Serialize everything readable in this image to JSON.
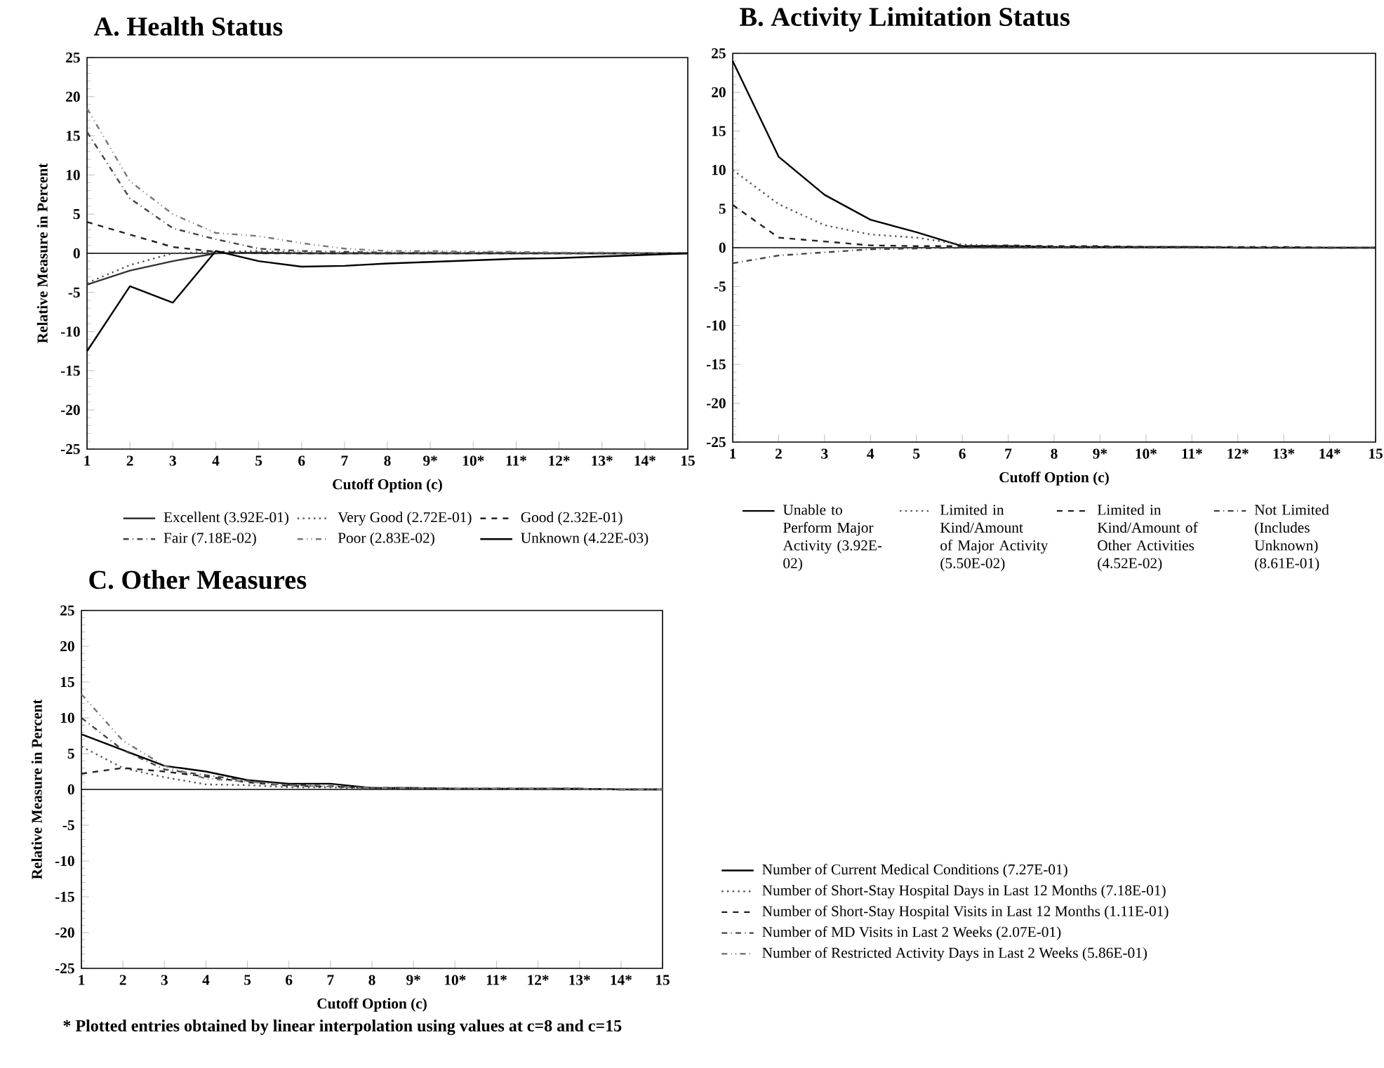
{
  "chart_data": [
    {
      "type": "line",
      "title": "A.  Health Status",
      "xlabel": "Cutoff Option (c)",
      "ylabel": "Relative Measure in Percent",
      "x": [
        1,
        2,
        3,
        4,
        5,
        6,
        7,
        8,
        9,
        10,
        11,
        12,
        13,
        14,
        15
      ],
      "xlim": [
        1,
        15
      ],
      "ylim": [
        -25,
        25
      ],
      "xticks": [
        1,
        2,
        3,
        4,
        5,
        6,
        7,
        8,
        {
          "value": 9,
          "label": "9*"
        },
        {
          "value": 10,
          "label": "10*"
        },
        {
          "value": 11,
          "label": "11*"
        },
        {
          "value": 12,
          "label": "12*"
        },
        {
          "value": 13,
          "label": "13*"
        },
        {
          "value": 14,
          "label": "14*"
        },
        15
      ],
      "yticks": [
        -25,
        -20,
        -15,
        -10,
        -5,
        0,
        5,
        10,
        15,
        20,
        25
      ],
      "legend": "bottom",
      "ref_lines": [
        {
          "axis": "y",
          "value": 0,
          "color": "#000000"
        }
      ],
      "series": [
        {
          "name": "Excellent (3.92E-01)",
          "color": "#333333",
          "line_style": "solid",
          "values": [
            -4,
            -2.2,
            -1,
            0,
            0.1,
            0,
            0,
            0,
            0,
            0,
            0,
            0,
            0,
            0,
            0
          ]
        },
        {
          "name": "Very Good (2.72E-01)",
          "color": "#555555",
          "line_style": "dotted",
          "values": [
            -3.8,
            -1.5,
            0,
            0.2,
            0.3,
            0.1,
            0,
            0,
            0,
            0,
            0,
            0,
            0,
            0,
            0
          ]
        },
        {
          "name": "Good (2.32E-01)",
          "color": "#222222",
          "line_style": "dashed",
          "values": [
            4,
            2.4,
            0.8,
            0.2,
            0,
            0,
            0,
            0,
            0,
            0,
            0,
            0,
            0,
            0,
            0
          ]
        },
        {
          "name": "Fair (7.18E-02)",
          "color": "#444444",
          "line_style": "dashdotted",
          "values": [
            15.5,
            7,
            3.2,
            1.8,
            0.6,
            0.3,
            0.2,
            0.1,
            0.1,
            0.1,
            0.1,
            0,
            0,
            0,
            0
          ]
        },
        {
          "name": "Poor (2.83E-02)",
          "color": "#777777",
          "line_style": "dashdotdotted",
          "values": [
            18.5,
            9.2,
            5,
            2.6,
            2.2,
            1.3,
            0.6,
            0.3,
            0.3,
            0.2,
            0.2,
            0.1,
            0.1,
            0,
            0
          ]
        },
        {
          "name": "Unknown (4.22E-03)",
          "color": "#000000",
          "line_style": "solid",
          "values": [
            -12.5,
            -4.2,
            -6.3,
            0.3,
            -1,
            -1.7,
            -1.6,
            -1.3,
            -1.1,
            -0.9,
            -0.7,
            -0.6,
            -0.4,
            -0.2,
            0
          ]
        }
      ]
    },
    {
      "type": "line",
      "title": "B.  Activity Limitation Status",
      "xlabel": "Cutoff Option (c)",
      "x": [
        1,
        2,
        3,
        4,
        5,
        6,
        7,
        8,
        9,
        10,
        11,
        12,
        13,
        14,
        15
      ],
      "xlim": [
        1,
        15
      ],
      "ylim": [
        -25,
        25
      ],
      "xticks": [
        1,
        2,
        3,
        4,
        5,
        6,
        7,
        8,
        {
          "value": 9,
          "label": "9*"
        },
        {
          "value": 10,
          "label": "10*"
        },
        {
          "value": 11,
          "label": "11*"
        },
        {
          "value": 12,
          "label": "12*"
        },
        {
          "value": 13,
          "label": "13*"
        },
        {
          "value": 14,
          "label": "14*"
        },
        15
      ],
      "yticks": [
        -25,
        -20,
        -15,
        -10,
        -5,
        0,
        5,
        10,
        15,
        20,
        25
      ],
      "legend": "bottom",
      "ref_lines": [
        {
          "axis": "y",
          "value": 0,
          "color": "#000000"
        }
      ],
      "series": [
        {
          "name": "Unable to Perform Major Activity (3.92E-02)",
          "color": "#000000",
          "line_style": "solid",
          "values": [
            24,
            11.7,
            6.8,
            3.6,
            2,
            0.2,
            0.2,
            0.1,
            0.1,
            0.1,
            0.1,
            0,
            0,
            0,
            0
          ]
        },
        {
          "name": "Limited in Kind/Amount of Major Activity (5.50E-02)",
          "color": "#555555",
          "line_style": "dotted",
          "values": [
            10,
            5.6,
            2.9,
            1.7,
            1.3,
            0.4,
            0.2,
            0.1,
            0.1,
            0.1,
            0.1,
            0,
            0,
            0,
            0
          ]
        },
        {
          "name": "Limited in Kind/Amount of Other Activities (4.52E-02)",
          "color": "#222222",
          "line_style": "dashed",
          "values": [
            5.5,
            1.3,
            0.8,
            0.3,
            0.2,
            0.2,
            0.3,
            0.2,
            0.2,
            0.1,
            0.1,
            0.1,
            0.1,
            0,
            0
          ]
        },
        {
          "name": "Not Limited (Includes Unknown) (8.61E-01)",
          "color": "#444444",
          "line_style": "dashdotted",
          "values": [
            -2,
            -1,
            -0.6,
            -0.2,
            -0.1,
            0,
            0,
            0,
            0,
            0,
            0,
            0,
            0,
            0,
            0
          ]
        }
      ]
    },
    {
      "type": "line",
      "title": "C.  Other Measures",
      "xlabel": "Cutoff Option (c)",
      "ylabel": "Relative Measure in Percent",
      "x": [
        1,
        2,
        3,
        4,
        5,
        6,
        7,
        8,
        9,
        10,
        11,
        12,
        13,
        14,
        15
      ],
      "xlim": [
        1,
        15
      ],
      "ylim": [
        -25,
        25
      ],
      "xticks": [
        1,
        2,
        3,
        4,
        5,
        6,
        7,
        8,
        {
          "value": 9,
          "label": "9*"
        },
        {
          "value": 10,
          "label": "10*"
        },
        {
          "value": 11,
          "label": "11*"
        },
        {
          "value": 12,
          "label": "12*"
        },
        {
          "value": 13,
          "label": "13*"
        },
        {
          "value": 14,
          "label": "14*"
        },
        15
      ],
      "yticks": [
        -25,
        -20,
        -15,
        -10,
        -5,
        0,
        5,
        10,
        15,
        20,
        25
      ],
      "legend": "right",
      "ref_lines": [
        {
          "axis": "y",
          "value": 0,
          "color": "#000000"
        }
      ],
      "annotations": [
        "*   Plotted entries obtained by linear interpolation using values at c=8 and c=15"
      ],
      "series": [
        {
          "name": "Number of Current Medical Conditions (7.27E-01)",
          "color": "#000000",
          "line_style": "solid",
          "values": [
            7.7,
            5.5,
            3.3,
            2.5,
            1.3,
            0.8,
            0.8,
            0.2,
            0.2,
            0.1,
            0.1,
            0.1,
            0.1,
            0,
            0
          ]
        },
        {
          "name": "Number of Short-Stay Hospital Days in Last 12 Months (7.18E-01)",
          "color": "#555555",
          "line_style": "dotted",
          "values": [
            6,
            3,
            1.7,
            0.7,
            0.6,
            0.3,
            0.3,
            0.1,
            0.1,
            0.1,
            0.1,
            0,
            0,
            0,
            0
          ]
        },
        {
          "name": "Number of Short-Stay Hospital Visits in Last 12 Months (1.11E-01)",
          "color": "#222222",
          "line_style": "dashed",
          "values": [
            2.2,
            3,
            2.5,
            1.8,
            1,
            0.5,
            0.4,
            0.2,
            0.2,
            0.1,
            0.1,
            0.1,
            0.1,
            0,
            0
          ]
        },
        {
          "name": "Number of MD Visits in Last 2 Weeks (2.07E-01)",
          "color": "#444444",
          "line_style": "dashdotted",
          "values": [
            10,
            5.5,
            2.8,
            2,
            1.2,
            0.6,
            0.5,
            0.2,
            0.2,
            0.1,
            0.1,
            0.1,
            0.1,
            0,
            0
          ]
        },
        {
          "name": "Number of Restricted Activity Days in Last 2 Weeks (5.86E-01)",
          "color": "#777777",
          "line_style": "dashdotdotted",
          "values": [
            13.3,
            6.8,
            3.3,
            1.5,
            1.1,
            0.6,
            0.4,
            0.2,
            0.2,
            0.1,
            0.1,
            0.1,
            0.1,
            0,
            0
          ]
        }
      ]
    }
  ]
}
